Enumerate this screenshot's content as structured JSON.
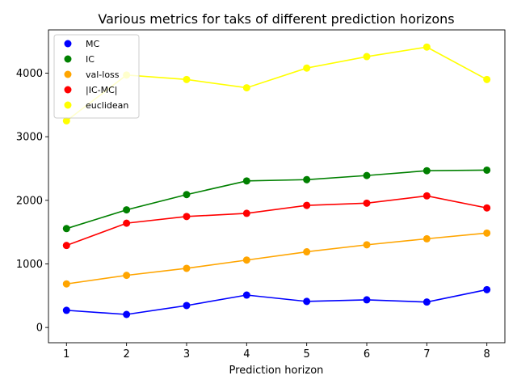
{
  "chart_data": {
    "type": "line",
    "title": "Various metrics for taks of different prediction horizons",
    "xlabel": "Prediction horizon",
    "ylabel": "",
    "x": [
      1,
      2,
      3,
      4,
      5,
      6,
      7,
      8
    ],
    "xlim": [
      0.7,
      8.3
    ],
    "ylim": [
      -240,
      4680
    ],
    "xticks": [
      "1",
      "2",
      "3",
      "4",
      "5",
      "6",
      "7",
      "8"
    ],
    "yticks": [
      0,
      1000,
      2000,
      3000,
      4000
    ],
    "grid": false,
    "legend_position": "top-left",
    "series": [
      {
        "name": "MC",
        "color": "#0000ff",
        "values": [
          270,
          205,
          345,
          510,
          410,
          435,
          400,
          595
        ]
      },
      {
        "name": "IC",
        "color": "#008000",
        "values": [
          1555,
          1850,
          2090,
          2305,
          2325,
          2390,
          2465,
          2475
        ]
      },
      {
        "name": "val-loss",
        "color": "#ffa500",
        "values": [
          685,
          820,
          930,
          1060,
          1190,
          1300,
          1395,
          1485
        ]
      },
      {
        "name": "|IC-MC|",
        "color": "#ff0000",
        "values": [
          1290,
          1640,
          1745,
          1795,
          1920,
          1955,
          2070,
          1880
        ]
      },
      {
        "name": "euclidean",
        "color": "#ffff00",
        "values": [
          3250,
          3970,
          3900,
          3770,
          4080,
          4260,
          4410,
          3900
        ]
      }
    ]
  }
}
